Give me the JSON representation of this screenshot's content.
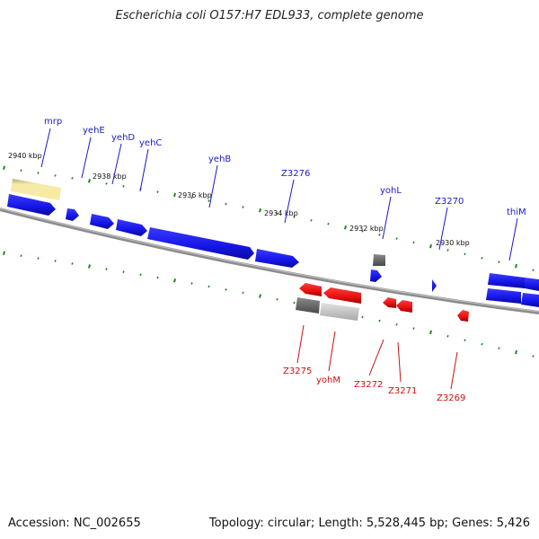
{
  "title": "Escherichia coli O157:H7 EDL933, complete genome",
  "footer": {
    "accession": "Accession: NC_002655",
    "summary": "Topology: circular; Length: 5,528,445 bp; Genes: 5,426"
  },
  "colors": {
    "forward_gene": "#1515e6",
    "reverse_gene": "#e60f0f",
    "tick": "#1a8a1a",
    "backbone": "#8c8c8c",
    "label_forward": "#1a1acc",
    "label_reverse": "#cc1111"
  },
  "scale_labels": [
    {
      "text": "2940 kbp",
      "pos": 2940
    },
    {
      "text": "2938 kbp",
      "pos": 2938
    },
    {
      "text": "2936 kbp",
      "pos": 2936
    },
    {
      "text": "2934 kbp",
      "pos": 2934
    },
    {
      "text": "2932 kbp",
      "pos": 2932
    },
    {
      "text": "2930 kbp",
      "pos": 2930
    }
  ],
  "forward_labels": [
    {
      "name": "mrp"
    },
    {
      "name": "yehE"
    },
    {
      "name": "yehD"
    },
    {
      "name": "yehC"
    },
    {
      "name": "yehB"
    },
    {
      "name": "Z3276"
    },
    {
      "name": "yohL"
    },
    {
      "name": "Z3270"
    },
    {
      "name": "thiM"
    }
  ],
  "reverse_labels": [
    {
      "name": "Z3275"
    },
    {
      "name": "yohM"
    },
    {
      "name": "Z3272"
    },
    {
      "name": "Z3271"
    },
    {
      "name": "Z3269"
    }
  ]
}
